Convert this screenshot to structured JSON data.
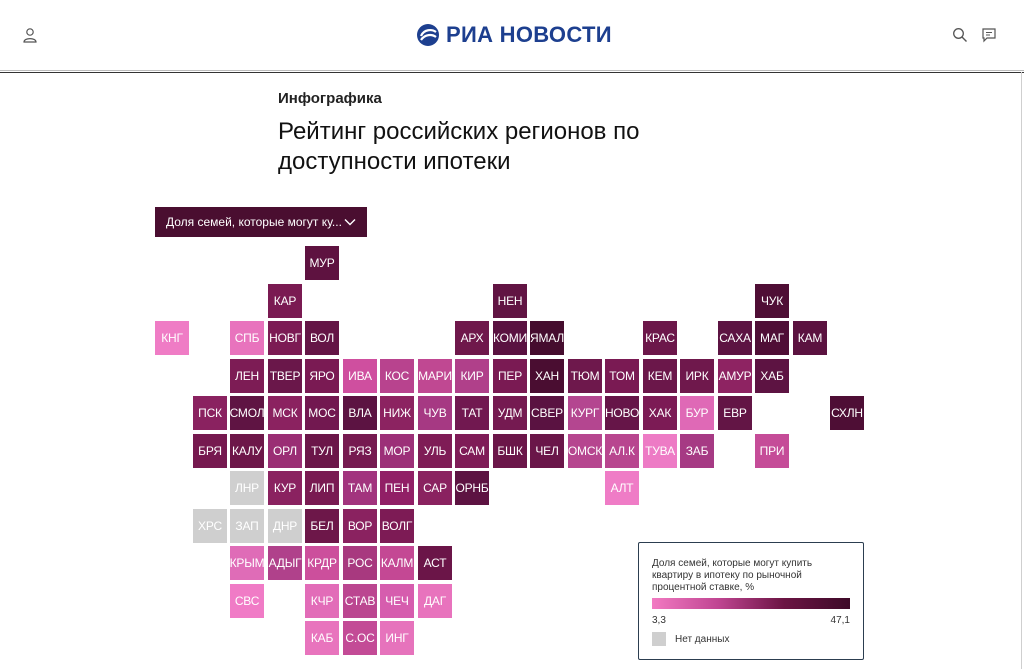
{
  "header": {
    "logo_text": "РИА НОВОСТИ",
    "brand_color": "#1d3f8f"
  },
  "article": {
    "category": "Инфографика",
    "title": "Рейтинг российских регионов по доступности ипотеки"
  },
  "dropdown": {
    "selected": "Доля семей, которые могут ку..."
  },
  "legend": {
    "title": "Доля семей, которые могут купить квартиру в ипотеку по рыночной процентной ставке, %",
    "min": "3,3",
    "max": "47,1",
    "no_data": "Нет данных"
  },
  "regions": [
    {
      "label": "МУР",
      "row": 0,
      "col": 4,
      "color": "#5e1240"
    },
    {
      "label": "КАР",
      "row": 1,
      "col": 3,
      "color": "#7a1a52"
    },
    {
      "label": "НЕН",
      "row": 1,
      "col": 9,
      "color": "#611443"
    },
    {
      "label": "ЧУК",
      "row": 1,
      "col": 16,
      "color": "#4f0e35"
    },
    {
      "label": "КНГ",
      "row": 2,
      "col": 0,
      "color": "#ef7cc5"
    },
    {
      "label": "СПБ",
      "row": 2,
      "col": 2,
      "color": "#e873bd"
    },
    {
      "label": "НОВГ",
      "row": 2,
      "col": 3,
      "color": "#7c1b54"
    },
    {
      "label": "ВОЛ",
      "row": 2,
      "col": 4,
      "color": "#641546"
    },
    {
      "label": "АРХ",
      "row": 2,
      "col": 8,
      "color": "#6f184b"
    },
    {
      "label": "КОМИ",
      "row": 2,
      "col": 9,
      "color": "#5a1241"
    },
    {
      "label": "ЯМАЛ",
      "row": 2,
      "col": 10,
      "color": "#450c2e"
    },
    {
      "label": "КРАС",
      "row": 2,
      "col": 13,
      "color": "#6c174a"
    },
    {
      "label": "САХА",
      "row": 2,
      "col": 15,
      "color": "#5c1342"
    },
    {
      "label": "МАГ",
      "row": 2,
      "col": 16,
      "color": "#4f0e36"
    },
    {
      "label": "КАМ",
      "row": 2,
      "col": 17,
      "color": "#5b1240"
    },
    {
      "label": "ЛЕН",
      "row": 3,
      "col": 2,
      "color": "#7d1c55"
    },
    {
      "label": "ТВЕР",
      "row": 3,
      "col": 3,
      "color": "#6a174a"
    },
    {
      "label": "ЯРО",
      "row": 3,
      "col": 4,
      "color": "#7a1a53"
    },
    {
      "label": "ИВА",
      "row": 3,
      "col": 5,
      "color": "#cf4f9f"
    },
    {
      "label": "КОС",
      "row": 3,
      "col": 6,
      "color": "#b8438e"
    },
    {
      "label": "МАРИ",
      "row": 3,
      "col": 7,
      "color": "#c04892"
    },
    {
      "label": "КИР",
      "row": 3,
      "col": 8,
      "color": "#b0408a"
    },
    {
      "label": "ПЕР",
      "row": 3,
      "col": 9,
      "color": "#7a1a53"
    },
    {
      "label": "ХАН",
      "row": 3,
      "col": 10,
      "color": "#4a0d31"
    },
    {
      "label": "ТЮМ",
      "row": 3,
      "col": 11,
      "color": "#6e184c"
    },
    {
      "label": "ТОМ",
      "row": 3,
      "col": 12,
      "color": "#7a1a53"
    },
    {
      "label": "КЕМ",
      "row": 3,
      "col": 13,
      "color": "#6b174a"
    },
    {
      "label": "ИРК",
      "row": 3,
      "col": 14,
      "color": "#6f184c"
    },
    {
      "label": "АМУР",
      "row": 3,
      "col": 15,
      "color": "#8e2362"
    },
    {
      "label": "ХАБ",
      "row": 3,
      "col": 16,
      "color": "#5d1342"
    },
    {
      "label": "ПСК",
      "row": 4,
      "col": 1,
      "color": "#8a2260"
    },
    {
      "label": "СМОЛ",
      "row": 4,
      "col": 2,
      "color": "#5f1443"
    },
    {
      "label": "МСК",
      "row": 4,
      "col": 3,
      "color": "#8b2260"
    },
    {
      "label": "МОС",
      "row": 4,
      "col": 4,
      "color": "#721850"
    },
    {
      "label": "ВЛА",
      "row": 4,
      "col": 5,
      "color": "#5c1342"
    },
    {
      "label": "НИЖ",
      "row": 4,
      "col": 6,
      "color": "#8c2361"
    },
    {
      "label": "ЧУВ",
      "row": 4,
      "col": 7,
      "color": "#a63983"
    },
    {
      "label": "ТАТ",
      "row": 4,
      "col": 8,
      "color": "#711850"
    },
    {
      "label": "УДМ",
      "row": 4,
      "col": 9,
      "color": "#751a51"
    },
    {
      "label": "СВЕР",
      "row": 4,
      "col": 10,
      "color": "#5a1241"
    },
    {
      "label": "КУРГ",
      "row": 4,
      "col": 11,
      "color": "#b44690"
    },
    {
      "label": "НОВО",
      "row": 4,
      "col": 12,
      "color": "#661548"
    },
    {
      "label": "ХАК",
      "row": 4,
      "col": 13,
      "color": "#7c1b55"
    },
    {
      "label": "БУР",
      "row": 4,
      "col": 14,
      "color": "#df69b6"
    },
    {
      "label": "ЕВР",
      "row": 4,
      "col": 15,
      "color": "#631545"
    },
    {
      "label": "СХЛН",
      "row": 4,
      "col": 18,
      "color": "#4e0e35"
    },
    {
      "label": "БРЯ",
      "row": 5,
      "col": 1,
      "color": "#76194f"
    },
    {
      "label": "КАЛУ",
      "row": 5,
      "col": 2,
      "color": "#6d1749"
    },
    {
      "label": "ОРЛ",
      "row": 5,
      "col": 3,
      "color": "#9a2e74"
    },
    {
      "label": "ТУЛ",
      "row": 5,
      "col": 4,
      "color": "#6b1649"
    },
    {
      "label": "РЯЗ",
      "row": 5,
      "col": 5,
      "color": "#761a50"
    },
    {
      "label": "МОР",
      "row": 5,
      "col": 6,
      "color": "#9c3078"
    },
    {
      "label": "УЛЬ",
      "row": 5,
      "col": 7,
      "color": "#7f1c56"
    },
    {
      "label": "САМ",
      "row": 5,
      "col": 8,
      "color": "#7f1c57"
    },
    {
      "label": "БШК",
      "row": 5,
      "col": 9,
      "color": "#6b1649"
    },
    {
      "label": "ЧЕЛ",
      "row": 5,
      "col": 10,
      "color": "#6a1649"
    },
    {
      "label": "ОМСК",
      "row": 5,
      "col": 11,
      "color": "#b6468f"
    },
    {
      "label": "АЛ.К",
      "row": 5,
      "col": 12,
      "color": "#b8468f"
    },
    {
      "label": "ТУВА",
      "row": 5,
      "col": 13,
      "color": "#ed7bc5"
    },
    {
      "label": "ЗАБ",
      "row": 5,
      "col": 14,
      "color": "#a63a84"
    },
    {
      "label": "ПРИ",
      "row": 5,
      "col": 16,
      "color": "#c54c98"
    },
    {
      "label": "ЛНР",
      "row": 6,
      "col": 2,
      "color": "#cfcfcf"
    },
    {
      "label": "КУР",
      "row": 6,
      "col": 3,
      "color": "#8a2260"
    },
    {
      "label": "ЛИП",
      "row": 6,
      "col": 4,
      "color": "#791a52"
    },
    {
      "label": "ТАМ",
      "row": 6,
      "col": 5,
      "color": "#a2347e"
    },
    {
      "label": "ПЕН",
      "row": 6,
      "col": 6,
      "color": "#911f66"
    },
    {
      "label": "САР",
      "row": 6,
      "col": 7,
      "color": "#8a2260"
    },
    {
      "label": "ОРНБ",
      "row": 6,
      "col": 8,
      "color": "#5d1342"
    },
    {
      "label": "АЛТ",
      "row": 6,
      "col": 12,
      "color": "#ef7cc6"
    },
    {
      "label": "ХРС",
      "row": 7,
      "col": 1,
      "color": "#cfcfcf"
    },
    {
      "label": "ЗАП",
      "row": 7,
      "col": 2,
      "color": "#cfcfcf"
    },
    {
      "label": "ДНР",
      "row": 7,
      "col": 3,
      "color": "#cfcfcf"
    },
    {
      "label": "БЕЛ",
      "row": 7,
      "col": 4,
      "color": "#6d1749"
    },
    {
      "label": "ВОР",
      "row": 7,
      "col": 5,
      "color": "#8a2260"
    },
    {
      "label": "ВОЛГ",
      "row": 7,
      "col": 6,
      "color": "#7d1b55"
    },
    {
      "label": "КРЫМ",
      "row": 8,
      "col": 2,
      "color": "#df6cb7"
    },
    {
      "label": "АДЫГ",
      "row": 8,
      "col": 3,
      "color": "#b0418b"
    },
    {
      "label": "КРДР",
      "row": 8,
      "col": 4,
      "color": "#cc4f9c"
    },
    {
      "label": "РОС",
      "row": 8,
      "col": 5,
      "color": "#a8397f"
    },
    {
      "label": "КАЛМ",
      "row": 8,
      "col": 6,
      "color": "#c44894"
    },
    {
      "label": "АСТ",
      "row": 8,
      "col": 7,
      "color": "#6b1548"
    },
    {
      "label": "СВС",
      "row": 9,
      "col": 2,
      "color": "#f07bc6"
    },
    {
      "label": "КЧР",
      "row": 9,
      "col": 4,
      "color": "#e26cb8"
    },
    {
      "label": "СТАВ",
      "row": 9,
      "col": 5,
      "color": "#bb4690"
    },
    {
      "label": "ЧЕЧ",
      "row": 9,
      "col": 6,
      "color": "#d65dae"
    },
    {
      "label": "ДАГ",
      "row": 9,
      "col": 7,
      "color": "#e873bd"
    },
    {
      "label": "КАБ",
      "row": 10,
      "col": 4,
      "color": "#e874bd"
    },
    {
      "label": "С.ОС",
      "row": 10,
      "col": 5,
      "color": "#c34b96"
    },
    {
      "label": "ИНГ",
      "row": 10,
      "col": 6,
      "color": "#e673bc"
    }
  ]
}
